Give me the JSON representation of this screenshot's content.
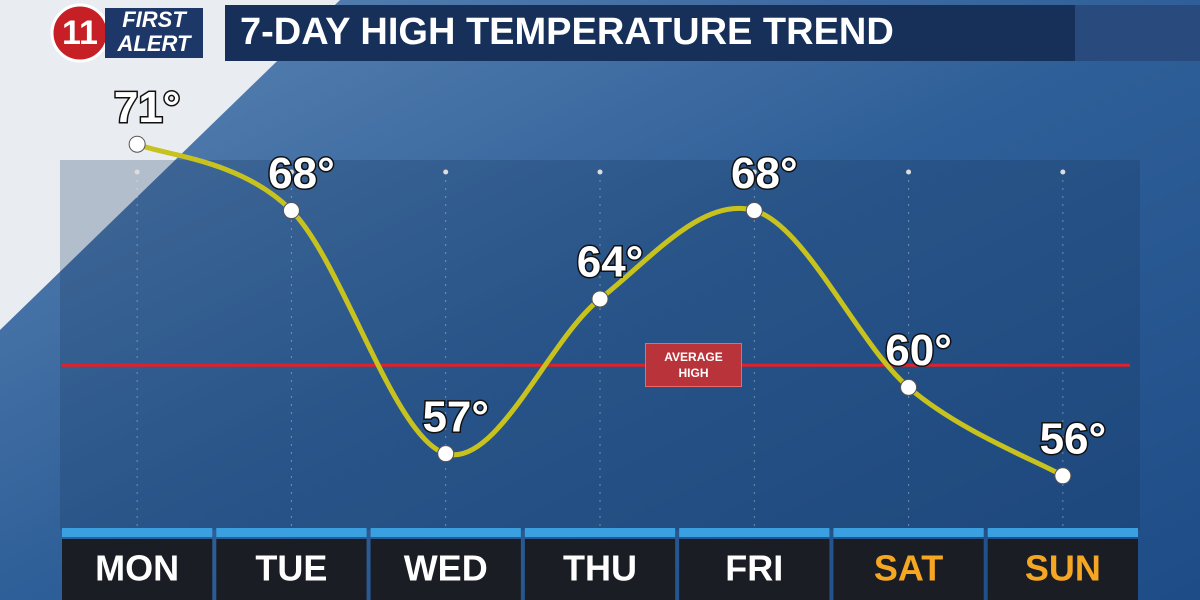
{
  "logo": {
    "number": "11",
    "lines": [
      "FIRST",
      "ALERT"
    ]
  },
  "chart_data": {
    "type": "line",
    "title": "7-DAY HIGH TEMPERATURE TREND",
    "categories": [
      "MON",
      "TUE",
      "WED",
      "THU",
      "FRI",
      "SAT",
      "SUN"
    ],
    "category_colors": [
      "#ffffff",
      "#ffffff",
      "#ffffff",
      "#ffffff",
      "#ffffff",
      "#f5a623",
      "#f5a623"
    ],
    "values": [
      71,
      68,
      57,
      64,
      68,
      60,
      56
    ],
    "value_labels": [
      "71°",
      "68°",
      "57°",
      "64°",
      "68°",
      "60°",
      "56°"
    ],
    "color": "#c8c21e",
    "ylim": [
      54,
      73
    ],
    "reference_line": {
      "value": 61,
      "label": "AVERAGE HIGH",
      "color": "#e0202a"
    }
  }
}
